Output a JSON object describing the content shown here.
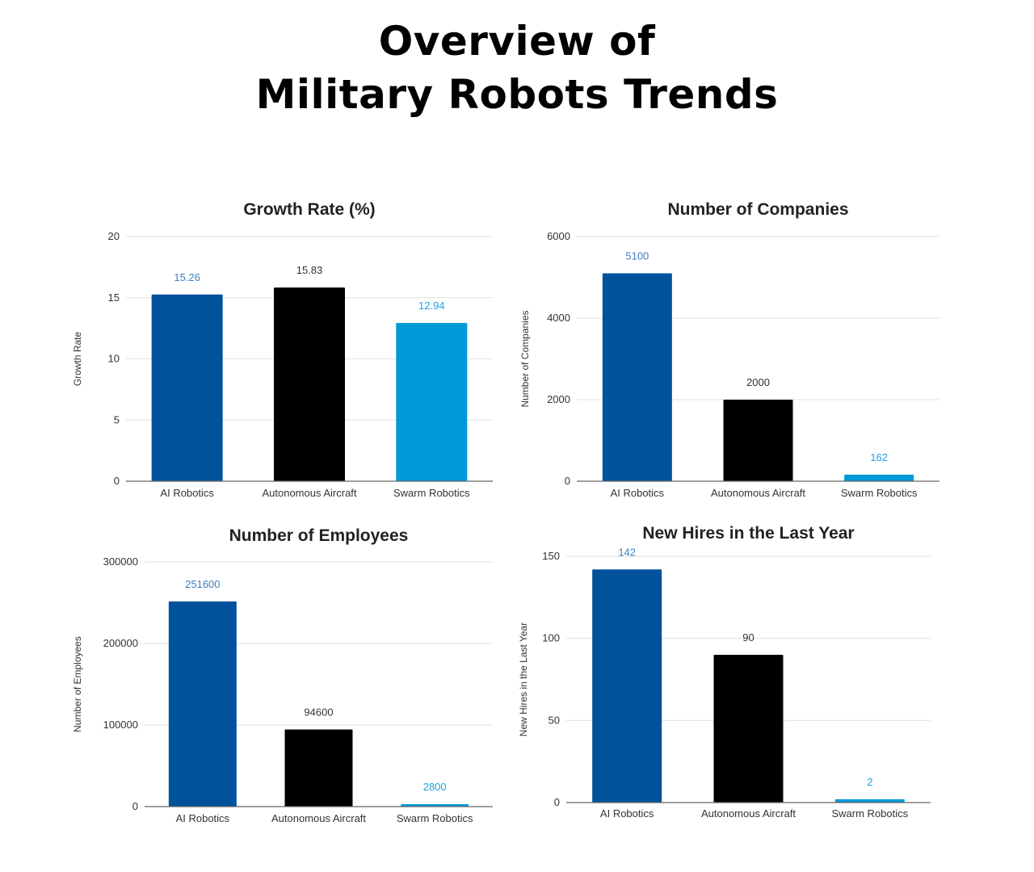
{
  "page": {
    "title_line1": "Overview of",
    "title_line2": "Military Robots Trends"
  },
  "colors": {
    "ai_robotics": "#00529b",
    "autonomous_aircraft": "#000000",
    "swarm_robotics": "#0099d8",
    "label_ai": "#3d7fbf",
    "label_aircraft": "#333333",
    "label_swarm": "#1aa3e0",
    "grid": "#e0e0e0",
    "axis": "#666666"
  },
  "chart_data": [
    {
      "type": "bar",
      "title": "Growth Rate (%)",
      "xlabel": "",
      "ylabel": "Growth Rate",
      "categories": [
        "AI Robotics",
        "Autonomous Aircraft",
        "Swarm Robotics"
      ],
      "values": [
        15.26,
        15.83,
        12.94
      ],
      "value_labels": [
        "15.26",
        "15.83",
        "12.94"
      ],
      "ylim": [
        0,
        20
      ],
      "yticks": [
        0,
        5,
        10,
        15,
        20
      ],
      "ytick_labels": [
        "0",
        "5",
        "10",
        "15",
        "20"
      ],
      "grid": true,
      "legend": "none"
    },
    {
      "type": "bar",
      "title": "Number of Companies",
      "xlabel": "",
      "ylabel": "Number of Companies",
      "categories": [
        "AI Robotics",
        "Autonomous Aircraft",
        "Swarm Robotics"
      ],
      "values": [
        5100,
        2000,
        162
      ],
      "value_labels": [
        "5100",
        "2000",
        "162"
      ],
      "ylim": [
        0,
        6000
      ],
      "yticks": [
        0,
        2000,
        4000,
        6000
      ],
      "ytick_labels": [
        "0",
        "2000",
        "4000",
        "6000"
      ],
      "grid": true,
      "legend": "none"
    },
    {
      "type": "bar",
      "title": "Number of Employees",
      "xlabel": "",
      "ylabel": "Number of Employees",
      "categories": [
        "AI Robotics",
        "Autonomous Aircraft",
        "Swarm Robotics"
      ],
      "values": [
        251600,
        94600,
        2800
      ],
      "value_labels": [
        "251600",
        "94600",
        "2800"
      ],
      "ylim": [
        0,
        300000
      ],
      "yticks": [
        0,
        100000,
        200000,
        300000
      ],
      "ytick_labels": [
        "0",
        "100000",
        "200000",
        "300000"
      ],
      "grid": true,
      "legend": "none"
    },
    {
      "type": "bar",
      "title": "New Hires in the Last Year",
      "xlabel": "",
      "ylabel": "New Hires in the Last Year",
      "categories": [
        "AI Robotics",
        "Autonomous Aircraft",
        "Swarm Robotics"
      ],
      "values": [
        142,
        90,
        2
      ],
      "value_labels": [
        "142",
        "90",
        "2"
      ],
      "ylim": [
        0,
        150
      ],
      "yticks": [
        0,
        50,
        100,
        150
      ],
      "ytick_labels": [
        "0",
        "50",
        "100",
        "150"
      ],
      "grid": true,
      "legend": "none"
    }
  ]
}
